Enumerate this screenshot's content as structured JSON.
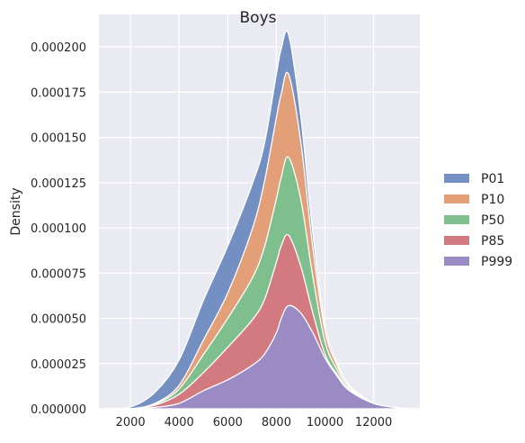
{
  "chart_data": {
    "type": "area",
    "stacked": true,
    "title": "Boys",
    "xlabel": "",
    "ylabel": "Density",
    "xlim": [
      700,
      13900
    ],
    "ylim": [
      0,
      0.000218
    ],
    "xticks": [
      2000,
      4000,
      6000,
      8000,
      10000,
      12000
    ],
    "xtick_labels": [
      "2000",
      "4000",
      "6000",
      "8000",
      "10000",
      "12000"
    ],
    "yticks": [
      0,
      2.5e-05,
      5e-05,
      7.5e-05,
      0.0001,
      0.000125,
      0.00015,
      0.000175,
      0.0002
    ],
    "ytick_labels": [
      "0.000000",
      "0.000025",
      "0.000050",
      "0.000075",
      "0.000100",
      "0.000125",
      "0.000150",
      "0.000175",
      "0.000200"
    ],
    "grid": true,
    "legend_position": "right",
    "x": [
      1000,
      2000,
      3000,
      4000,
      5000,
      6000,
      7000,
      7500,
      8000,
      8200,
      8500,
      9000,
      9500,
      10000,
      10500,
      11000,
      12000,
      13000,
      13500
    ],
    "series": [
      {
        "name": "P999",
        "color": "#9a8bc5",
        "values": [
          0,
          0,
          8e-07,
          3e-06,
          1e-05,
          1.6e-05,
          2.4e-05,
          3e-05,
          4.2e-05,
          5e-05,
          5.7e-05,
          5.3e-05,
          4.2e-05,
          2.8e-05,
          1.8e-05,
          1e-05,
          3e-06,
          5e-07,
          0
        ]
      },
      {
        "name": "P85",
        "color": "#d27a7f",
        "values": [
          0,
          0,
          1.2e-06,
          5e-06,
          1e-05,
          1.8e-05,
          2.5e-05,
          3e-05,
          3.9e-05,
          4e-05,
          3.9e-05,
          2.6e-05,
          1.1e-05,
          2e-06,
          1e-06,
          5e-07,
          0,
          0,
          0
        ]
      },
      {
        "name": "P50",
        "color": "#7fbf8e",
        "values": [
          0,
          0,
          5e-07,
          3e-06,
          1e-05,
          1.6e-05,
          2.3e-05,
          2.9e-05,
          3.5e-05,
          3.8e-05,
          4.3e-05,
          3.7e-05,
          2e-05,
          7e-06,
          2.5e-06,
          1e-06,
          0,
          0,
          0
        ]
      },
      {
        "name": "P10",
        "color": "#e29f78",
        "values": [
          0,
          0,
          5e-07,
          2e-06,
          8e-06,
          1.4e-05,
          2.7e-05,
          3.6e-05,
          4.5e-05,
          4.6e-05,
          4.6e-05,
          3.2e-05,
          1.6e-05,
          6e-06,
          2.5e-06,
          1e-06,
          0,
          0,
          0
        ]
      },
      {
        "name": "P01",
        "color": "#7490c2",
        "values": [
          0,
          1e-06,
          6e-06,
          1.4e-05,
          2.2e-05,
          2.6e-05,
          2.5e-05,
          2.1e-05,
          2.4e-05,
          2.5e-05,
          2.2e-05,
          1.4e-05,
          8e-06,
          3e-06,
          1.5e-06,
          5e-07,
          0,
          0,
          0
        ]
      }
    ],
    "legend_order": [
      "P01",
      "P10",
      "P50",
      "P85",
      "P999"
    ]
  }
}
